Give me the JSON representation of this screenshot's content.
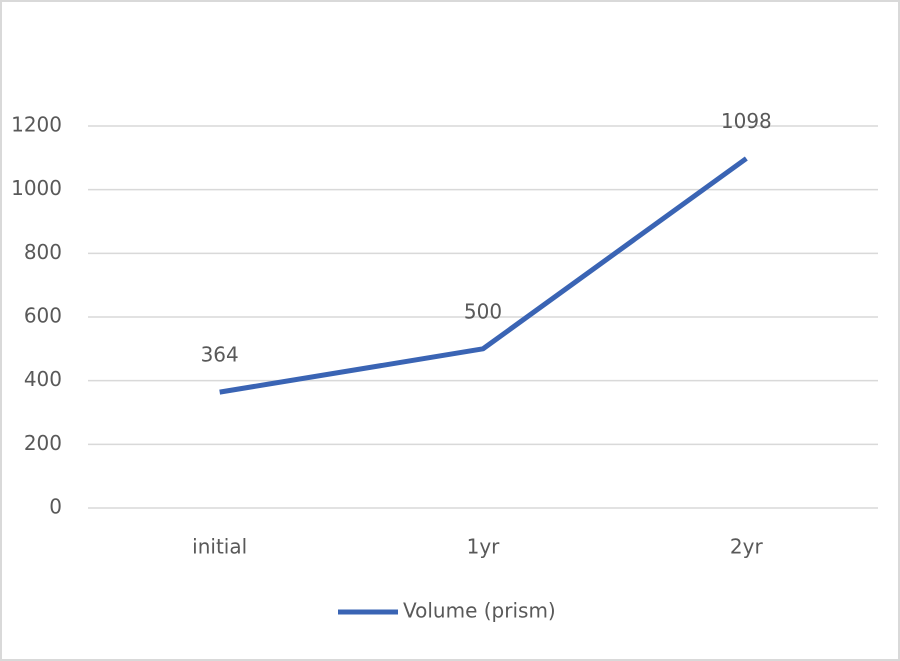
{
  "chart_data": {
    "type": "line",
    "categories": [
      "initial",
      "1yr",
      "2yr"
    ],
    "series": [
      {
        "name": "Volume (prism)",
        "color": "#3a64b4",
        "values": [
          364,
          500,
          1098
        ]
      }
    ],
    "ylim": [
      0,
      1200
    ],
    "yticks": [
      0,
      200,
      400,
      600,
      800,
      1000,
      1200
    ],
    "grid": true,
    "legend": "bottom"
  }
}
